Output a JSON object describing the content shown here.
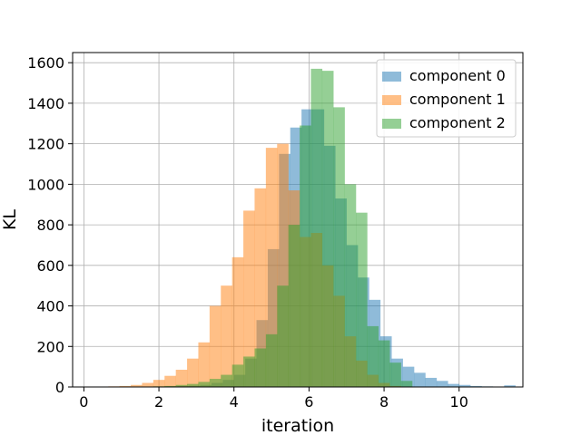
{
  "chart_data": {
    "type": "bar",
    "histogram": true,
    "title": "",
    "xlabel": "iteration",
    "ylabel": "KL",
    "xlim": [
      -0.3,
      11.7
    ],
    "ylim": [
      0,
      1650
    ],
    "xticks": [
      0,
      2,
      4,
      6,
      8,
      10
    ],
    "yticks": [
      0,
      200,
      400,
      600,
      800,
      1000,
      1200,
      1400,
      1600
    ],
    "grid": true,
    "legend_position": "top-right",
    "bin_width": 0.3,
    "series": [
      {
        "name": "component 0",
        "color": "#1f77b4",
        "opacity": 0.5,
        "x": [
          0.1,
          0.4,
          0.7,
          1.0,
          1.3,
          1.6,
          1.9,
          2.2,
          2.5,
          2.8,
          3.1,
          3.4,
          3.7,
          4.0,
          4.3,
          4.6,
          4.9,
          5.2,
          5.5,
          5.8,
          6.1,
          6.4,
          6.7,
          7.0,
          7.3,
          7.6,
          7.9,
          8.2,
          8.5,
          8.8,
          9.1,
          9.4,
          9.7,
          10.0,
          10.3,
          10.6,
          10.9,
          11.2
        ],
        "values": [
          1,
          0,
          0,
          0,
          0,
          1,
          2,
          3,
          4,
          6,
          10,
          20,
          35,
          60,
          140,
          330,
          680,
          1150,
          1280,
          1370,
          1370,
          1190,
          930,
          700,
          540,
          430,
          250,
          140,
          100,
          70,
          45,
          30,
          15,
          10,
          5,
          3,
          1,
          8
        ]
      },
      {
        "name": "component 1",
        "color": "#ff7f0e",
        "opacity": 0.5,
        "x": [
          0.05,
          0.35,
          0.65,
          0.95,
          1.25,
          1.55,
          1.85,
          2.15,
          2.45,
          2.75,
          3.05,
          3.35,
          3.65,
          3.95,
          4.25,
          4.55,
          4.85,
          5.15,
          5.45,
          5.75,
          6.05,
          6.35,
          6.65,
          6.95,
          7.25,
          7.55,
          7.85,
          8.15
        ],
        "values": [
          1,
          2,
          3,
          5,
          10,
          20,
          35,
          55,
          85,
          140,
          220,
          400,
          500,
          640,
          870,
          980,
          1180,
          1200,
          970,
          740,
          760,
          600,
          450,
          250,
          130,
          60,
          20,
          5
        ]
      },
      {
        "name": "component 2",
        "color": "#2ca02c",
        "opacity": 0.5,
        "x": [
          1.25,
          1.55,
          1.85,
          2.15,
          2.45,
          2.75,
          3.05,
          3.35,
          3.65,
          3.95,
          4.25,
          4.55,
          4.85,
          5.15,
          5.45,
          5.75,
          6.05,
          6.35,
          6.65,
          6.95,
          7.25,
          7.55,
          7.85,
          8.15,
          8.45
        ],
        "values": [
          1,
          2,
          3,
          5,
          10,
          15,
          25,
          40,
          60,
          110,
          150,
          190,
          260,
          500,
          800,
          1290,
          1570,
          1560,
          1380,
          1000,
          860,
          300,
          230,
          120,
          30
        ]
      }
    ]
  }
}
